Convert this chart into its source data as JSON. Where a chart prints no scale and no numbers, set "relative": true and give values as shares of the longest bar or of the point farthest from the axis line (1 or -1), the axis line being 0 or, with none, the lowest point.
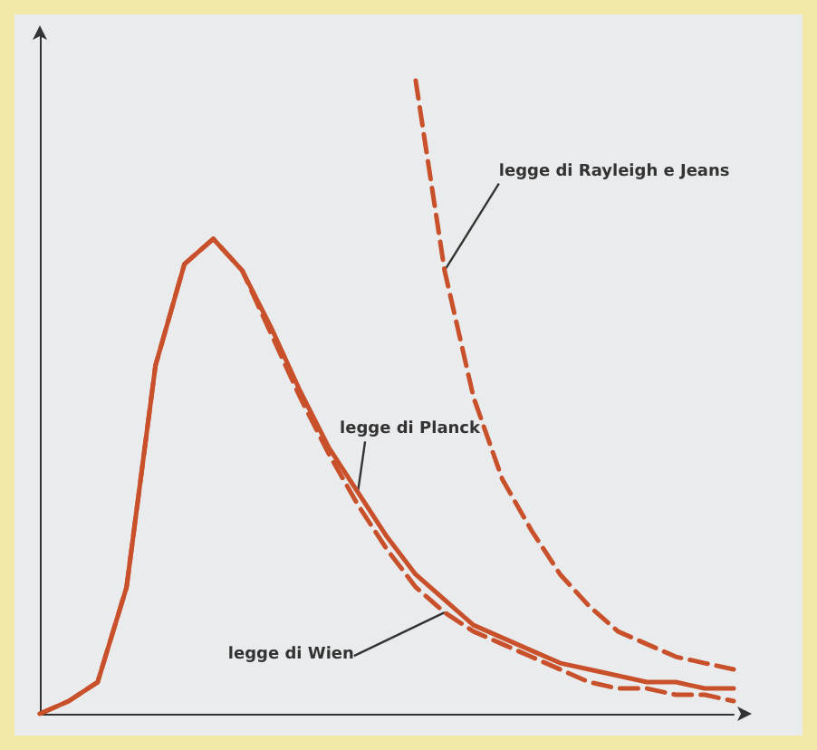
{
  "chart_data": {
    "type": "line",
    "relative": true,
    "grid": false,
    "marker": "none",
    "categories": [
      null,
      null,
      null,
      null,
      null,
      null,
      null,
      null,
      null,
      null,
      null,
      null,
      null,
      null,
      null,
      null,
      null,
      null,
      null,
      null,
      null,
      null,
      null,
      null,
      null
    ],
    "series": [
      {
        "color": "#c8502a",
        "line_style": "solid",
        "values": [
          0,
          0.02,
          0.05,
          0.2,
          0.55,
          0.71,
          0.75,
          0.7,
          0.61,
          0.51,
          0.42,
          0.35,
          0.28,
          0.22,
          0.18,
          0.14,
          0.12,
          0.1,
          0.08,
          0.07,
          0.06,
          0.05,
          0.05,
          0.04,
          0.04
        ]
      },
      {
        "color": "#c8502a",
        "line_style": "dashed",
        "values": [
          0,
          0.02,
          0.05,
          0.2,
          0.55,
          0.71,
          0.75,
          0.7,
          0.6,
          0.5,
          0.41,
          0.33,
          0.26,
          0.2,
          0.16,
          0.13,
          0.11,
          0.09,
          0.07,
          0.05,
          0.04,
          0.04,
          0.03,
          0.03,
          0.02
        ]
      },
      {
        "color": "#c8502a",
        "line_style": "dashed",
        "values": [
          null,
          null,
          null,
          null,
          null,
          null,
          null,
          null,
          null,
          null,
          null,
          null,
          null,
          1,
          0.7,
          0.5,
          0.37,
          0.29,
          0.22,
          0.17,
          0.13,
          0.11,
          0.09,
          0.08,
          0.07
        ]
      }
    ],
    "annotations": [
      "legge di Rayleigh e Jeans",
      "legge di Planck",
      "legge di Wien"
    ]
  }
}
